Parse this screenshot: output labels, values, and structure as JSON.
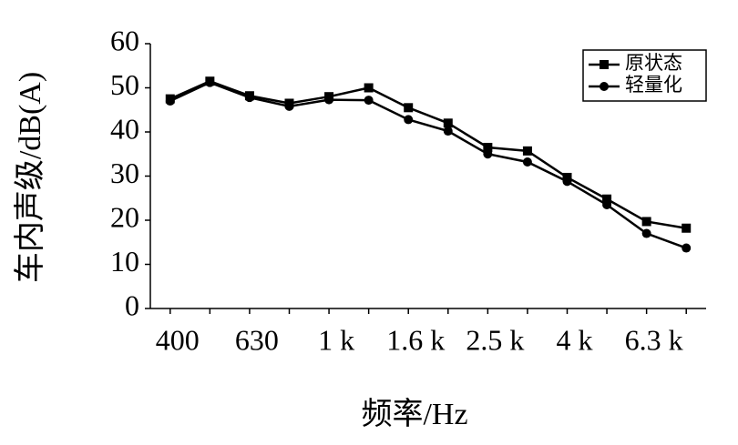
{
  "chart_data": {
    "type": "line",
    "x_label": "频率/Hz",
    "y_label": "车内声级/dB(A)",
    "categories": [
      "400",
      null,
      "630",
      null,
      "1 k",
      null,
      "1.6 k",
      null,
      "2.5 k",
      null,
      "4 k",
      null,
      "6.3 k",
      null
    ],
    "series": [
      {
        "name": "原状态",
        "color": "#000000",
        "marker": "square",
        "values": [
          47.5,
          51.5,
          48.2,
          46.5,
          48.0,
          50.0,
          45.5,
          42.0,
          36.5,
          35.7,
          29.7,
          24.8,
          19.7,
          18.2
        ]
      },
      {
        "name": "轻量化",
        "color": "#000000",
        "marker": "circle",
        "values": [
          47.0,
          51.2,
          47.8,
          45.8,
          47.3,
          47.2,
          42.8,
          40.2,
          35.0,
          33.2,
          28.8,
          23.5,
          17.0,
          13.7
        ]
      }
    ],
    "ylim": [
      0,
      60
    ],
    "yticks": [
      0,
      10,
      20,
      30,
      40,
      50,
      60
    ],
    "grid": false,
    "legend": "upper right"
  }
}
